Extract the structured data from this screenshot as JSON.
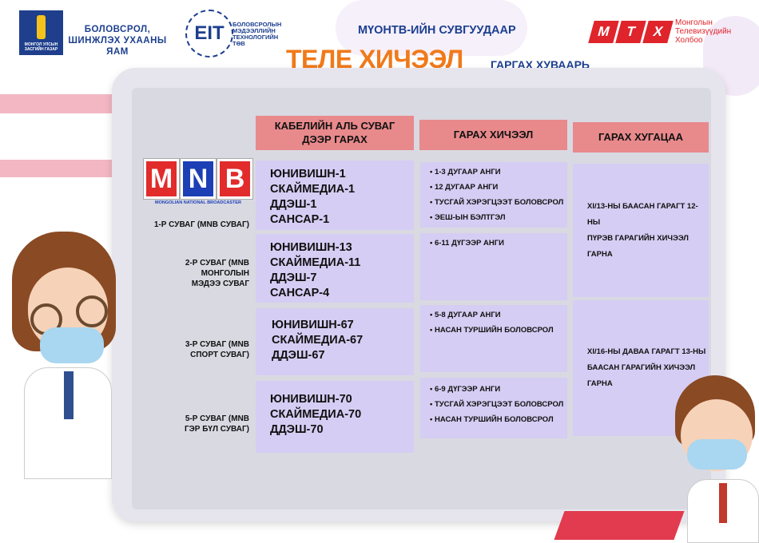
{
  "header": {
    "gov_logo_text": "МОНГОЛ УЛСЫН ЗАСГИЙН ГАЗАР",
    "ministry": [
      "БОЛОВСРОЛ,",
      "ШИНЖЛЭХ УХААНЫ",
      "ЯАМ"
    ],
    "eit_logo": "EIT",
    "eit_name": [
      "БОЛОВСРОЛЫН",
      "МЭДЭЭЛЛИЙН",
      "ТЕХНОЛОГИЙН",
      "ТӨВ"
    ],
    "subtitle": "МҮОНТВ-ИЙН СУВГУУДААР",
    "title_big": "ТЕЛЕ ХИЧЭЭЛ",
    "title_small": "ГАРГАХ ХУВААРЬ",
    "mtx_logo": [
      "М",
      "Т",
      "Х"
    ],
    "mtx_name": [
      "Монголын",
      "Телевизүүдийн",
      "Холбоо"
    ]
  },
  "colors": {
    "title_orange": "#f07a1a",
    "subtitle_blue": "#1c3f8f",
    "header_red": "#e8898b",
    "cell_lavender": "#d5cdf3",
    "mtx_red": "#e0242b"
  },
  "table": {
    "headers": [
      "КАБЕЛИЙН АЛЬ СУВАГ ДЭЭР ГАРАХ",
      "ГАРАХ ХИЧЭЭЛ",
      "ГАРАХ ХУГАЦАА"
    ],
    "mnb_logo": "MNB",
    "mnb_tagline": "MONGOLIAN NATIONAL BROADCASTER",
    "rows": [
      {
        "channel": "1-Р СУВАГ (MNB СУВАГ)",
        "cable": [
          "ЮНИВИШН-1",
          "СКАЙМЕДИА-1",
          "ДДЭШ-1",
          "САНСАР-1"
        ],
        "lessons": [
          "1-3 ДУГААР АНГИ",
          "12 ДУГААР АНГИ",
          "ТУСГАЙ ХЭРЭГЦЭЭТ БОЛОВСРОЛ",
          "ЭЕШ-ЫН БЭЛТГЭЛ"
        ]
      },
      {
        "channel": "2-Р СУВАГ (MNB МОНГОЛЫН МЭДЭЭ СУВАГ",
        "cable": [
          "ЮНИВИШН-13",
          "СКАЙМЕДИА-11",
          "ДДЭШ-7",
          "САНСАР-4"
        ],
        "lessons": [
          "6-11 ДҮГЭЭР АНГИ"
        ]
      },
      {
        "channel": "3-Р СУВАГ (MNB СПОРТ СУВАГ)",
        "cable": [
          "ЮНИВИШН-67",
          "СКАЙМЕДИА-67",
          "ДДЭШ-67"
        ],
        "lessons": [
          "5-8 ДУГААР АНГИ",
          "НАСАН ТУРШИЙН БОЛОВСРОЛ"
        ]
      },
      {
        "channel": "5-Р СУВАГ (MNB ГЭР БҮЛ СУВАГ)",
        "cable": [
          "ЮНИВИШН-70",
          "СКАЙМЕДИА-70",
          "ДДЭШ-70"
        ],
        "lessons": [
          "6-9 ДҮГЭЭР АНГИ",
          "ТУСГАЙ ХЭРЭГЦЭЭТ БОЛОВСРОЛ",
          "НАСАН ТУРШИЙН БОЛОВСРОЛ"
        ]
      }
    ],
    "times": [
      [
        "XI/13-НЫ БААСАН ГАРАГТ 12-НЫ",
        "ПҮРЭВ ГАРАГИЙН ХИЧЭЭЛ ГАРНА"
      ],
      [
        "XI/16-НЫ ДАВАА ГАРАГТ 13-НЫ",
        "БААСАН ГАРАГИЙН ХИЧЭЭЛ ГАРНА"
      ]
    ]
  }
}
